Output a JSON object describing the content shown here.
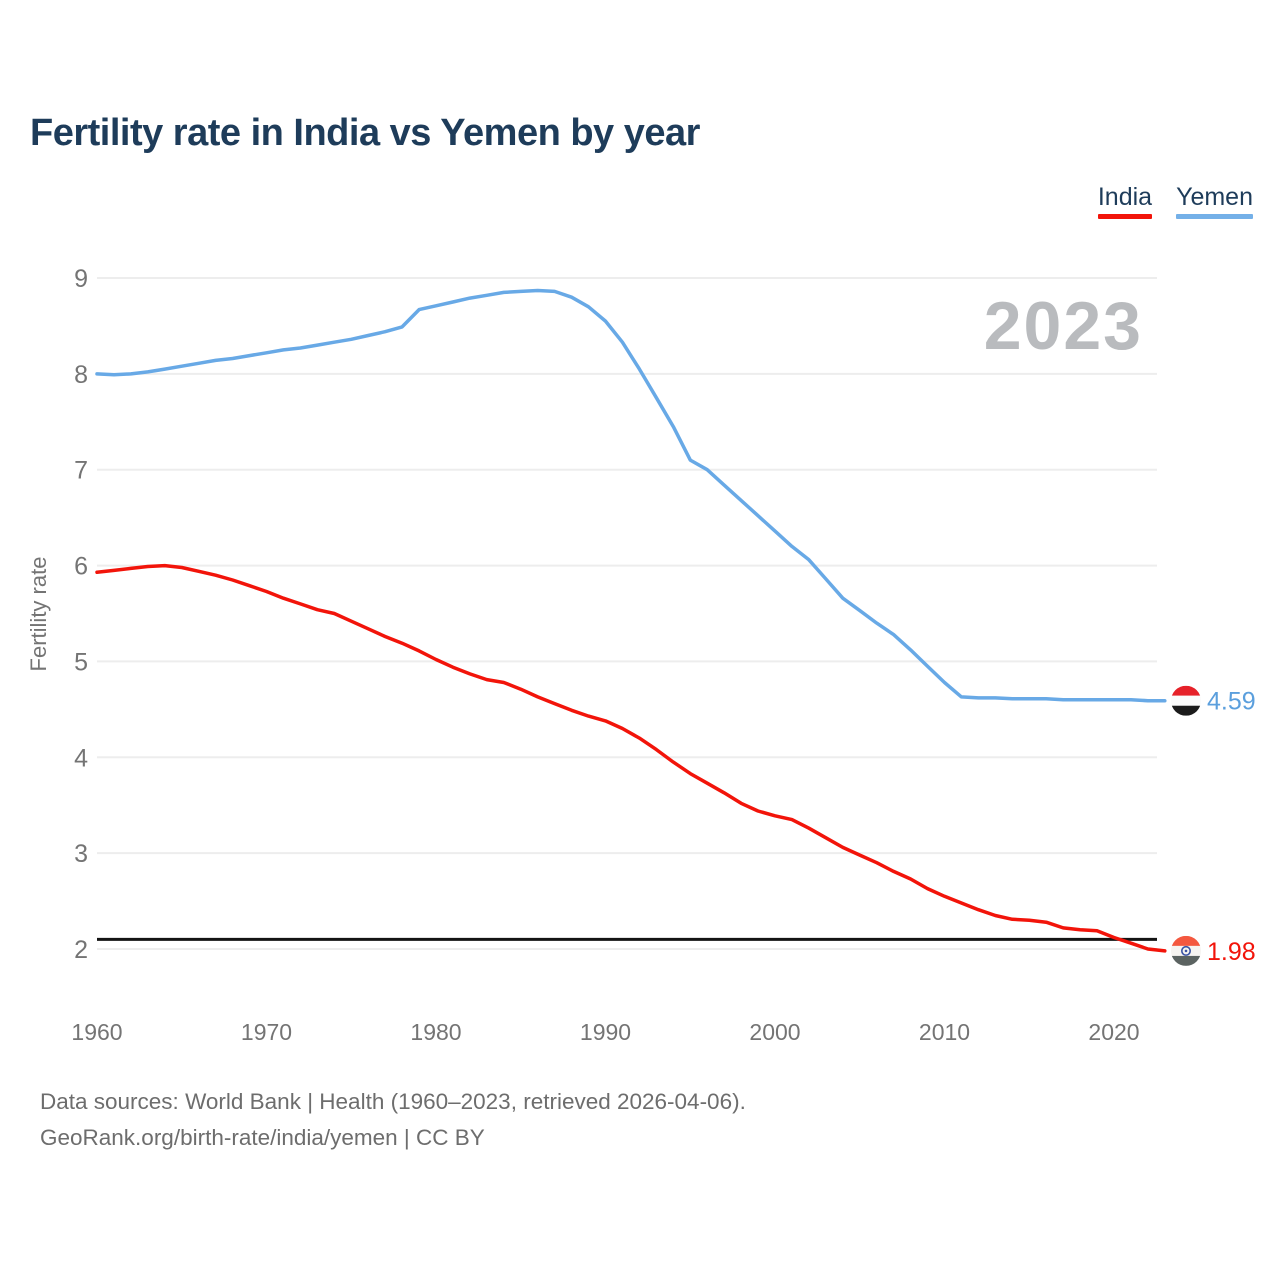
{
  "title": "Fertility rate in India vs Yemen by year",
  "watermark": "2023",
  "legend": {
    "items": [
      {
        "label": "India",
        "color": "#f2140a"
      },
      {
        "label": "Yemen",
        "color": "#74b0e8"
      }
    ]
  },
  "y_axis": {
    "label": "Fertility rate",
    "ticks": [
      "9",
      "8",
      "7",
      "6",
      "5",
      "4",
      "3",
      "2"
    ]
  },
  "x_axis": {
    "ticks": [
      "1960",
      "1970",
      "1980",
      "1990",
      "2000",
      "2010",
      "2020"
    ]
  },
  "reference_line": {
    "value": 2.1,
    "color": "#141414"
  },
  "end_markers": [
    {
      "series": "Yemen",
      "value_label": "4.59",
      "flag": "yemen-flag",
      "text_color": "#5b9fdd",
      "flag_stripes": [
        "#e62129",
        "#fbfbfb",
        "#1b1b1b"
      ],
      "chakra": null
    },
    {
      "series": "India",
      "value_label": "1.98",
      "flag": "india-flag",
      "text_color": "#f2140a",
      "flag_stripes": [
        "#f4583f",
        "#f6f4f1",
        "#5b6361"
      ],
      "chakra": "#3a53a4"
    }
  ],
  "footer": {
    "line1": "Data sources: World Bank | Health (1960–2023, retrieved 2026-04-06).",
    "line2": "GeoRank.org/birth-rate/india/yemen | CC BY"
  },
  "chart_data": {
    "type": "line",
    "title": "Fertility rate in India vs Yemen by year",
    "xlabel": "",
    "ylabel": "Fertility rate",
    "grid": "horizontal",
    "legend_position": "top-right",
    "y_ticks": [
      2,
      3,
      4,
      5,
      6,
      7,
      8,
      9
    ],
    "ylim": [
      1.9,
      9.2
    ],
    "x": [
      1960,
      1961,
      1962,
      1963,
      1964,
      1965,
      1966,
      1967,
      1968,
      1969,
      1970,
      1971,
      1972,
      1973,
      1974,
      1975,
      1976,
      1977,
      1978,
      1979,
      1980,
      1981,
      1982,
      1983,
      1984,
      1985,
      1986,
      1987,
      1988,
      1989,
      1990,
      1991,
      1992,
      1993,
      1994,
      1995,
      1996,
      1997,
      1998,
      1999,
      2000,
      2001,
      2002,
      2003,
      2004,
      2005,
      2006,
      2007,
      2008,
      2009,
      2010,
      2011,
      2012,
      2013,
      2014,
      2015,
      2016,
      2017,
      2018,
      2019,
      2020,
      2021,
      2022,
      2023
    ],
    "series": [
      {
        "name": "India",
        "color": "#f2140a",
        "end_value": 1.98,
        "values": [
          5.93,
          5.95,
          5.97,
          5.99,
          6.0,
          5.98,
          5.94,
          5.9,
          5.85,
          5.79,
          5.73,
          5.66,
          5.6,
          5.54,
          5.5,
          5.42,
          5.34,
          5.26,
          5.19,
          5.11,
          5.02,
          4.94,
          4.87,
          4.81,
          4.78,
          4.71,
          4.63,
          4.56,
          4.49,
          4.43,
          4.38,
          4.3,
          4.2,
          4.08,
          3.95,
          3.83,
          3.73,
          3.63,
          3.52,
          3.44,
          3.39,
          3.35,
          3.26,
          3.16,
          3.06,
          2.98,
          2.9,
          2.81,
          2.73,
          2.63,
          2.55,
          2.48,
          2.41,
          2.35,
          2.31,
          2.3,
          2.28,
          2.22,
          2.2,
          2.19,
          2.12,
          2.06,
          2.0,
          1.98
        ]
      },
      {
        "name": "Yemen",
        "color": "#68a9e6",
        "end_value": 4.59,
        "values": [
          8.0,
          7.99,
          8.0,
          8.02,
          8.05,
          8.08,
          8.11,
          8.14,
          8.16,
          8.19,
          8.22,
          8.25,
          8.27,
          8.3,
          8.33,
          8.36,
          8.4,
          8.44,
          8.49,
          8.67,
          8.71,
          8.75,
          8.79,
          8.82,
          8.85,
          8.86,
          8.87,
          8.86,
          8.8,
          8.7,
          8.55,
          8.33,
          8.05,
          7.75,
          7.45,
          7.1,
          7.0,
          6.84,
          6.68,
          6.52,
          6.36,
          6.2,
          6.06,
          5.86,
          5.66,
          5.53,
          5.4,
          5.28,
          5.12,
          4.95,
          4.78,
          4.63,
          4.62,
          4.62,
          4.61,
          4.61,
          4.61,
          4.6,
          4.6,
          4.6,
          4.6,
          4.6,
          4.59,
          4.59
        ]
      }
    ]
  },
  "colors": {
    "grid": "#ededed",
    "axis_text": "#747474",
    "watermark": "#b9bbbe",
    "title_text": "#1e3c5a"
  }
}
